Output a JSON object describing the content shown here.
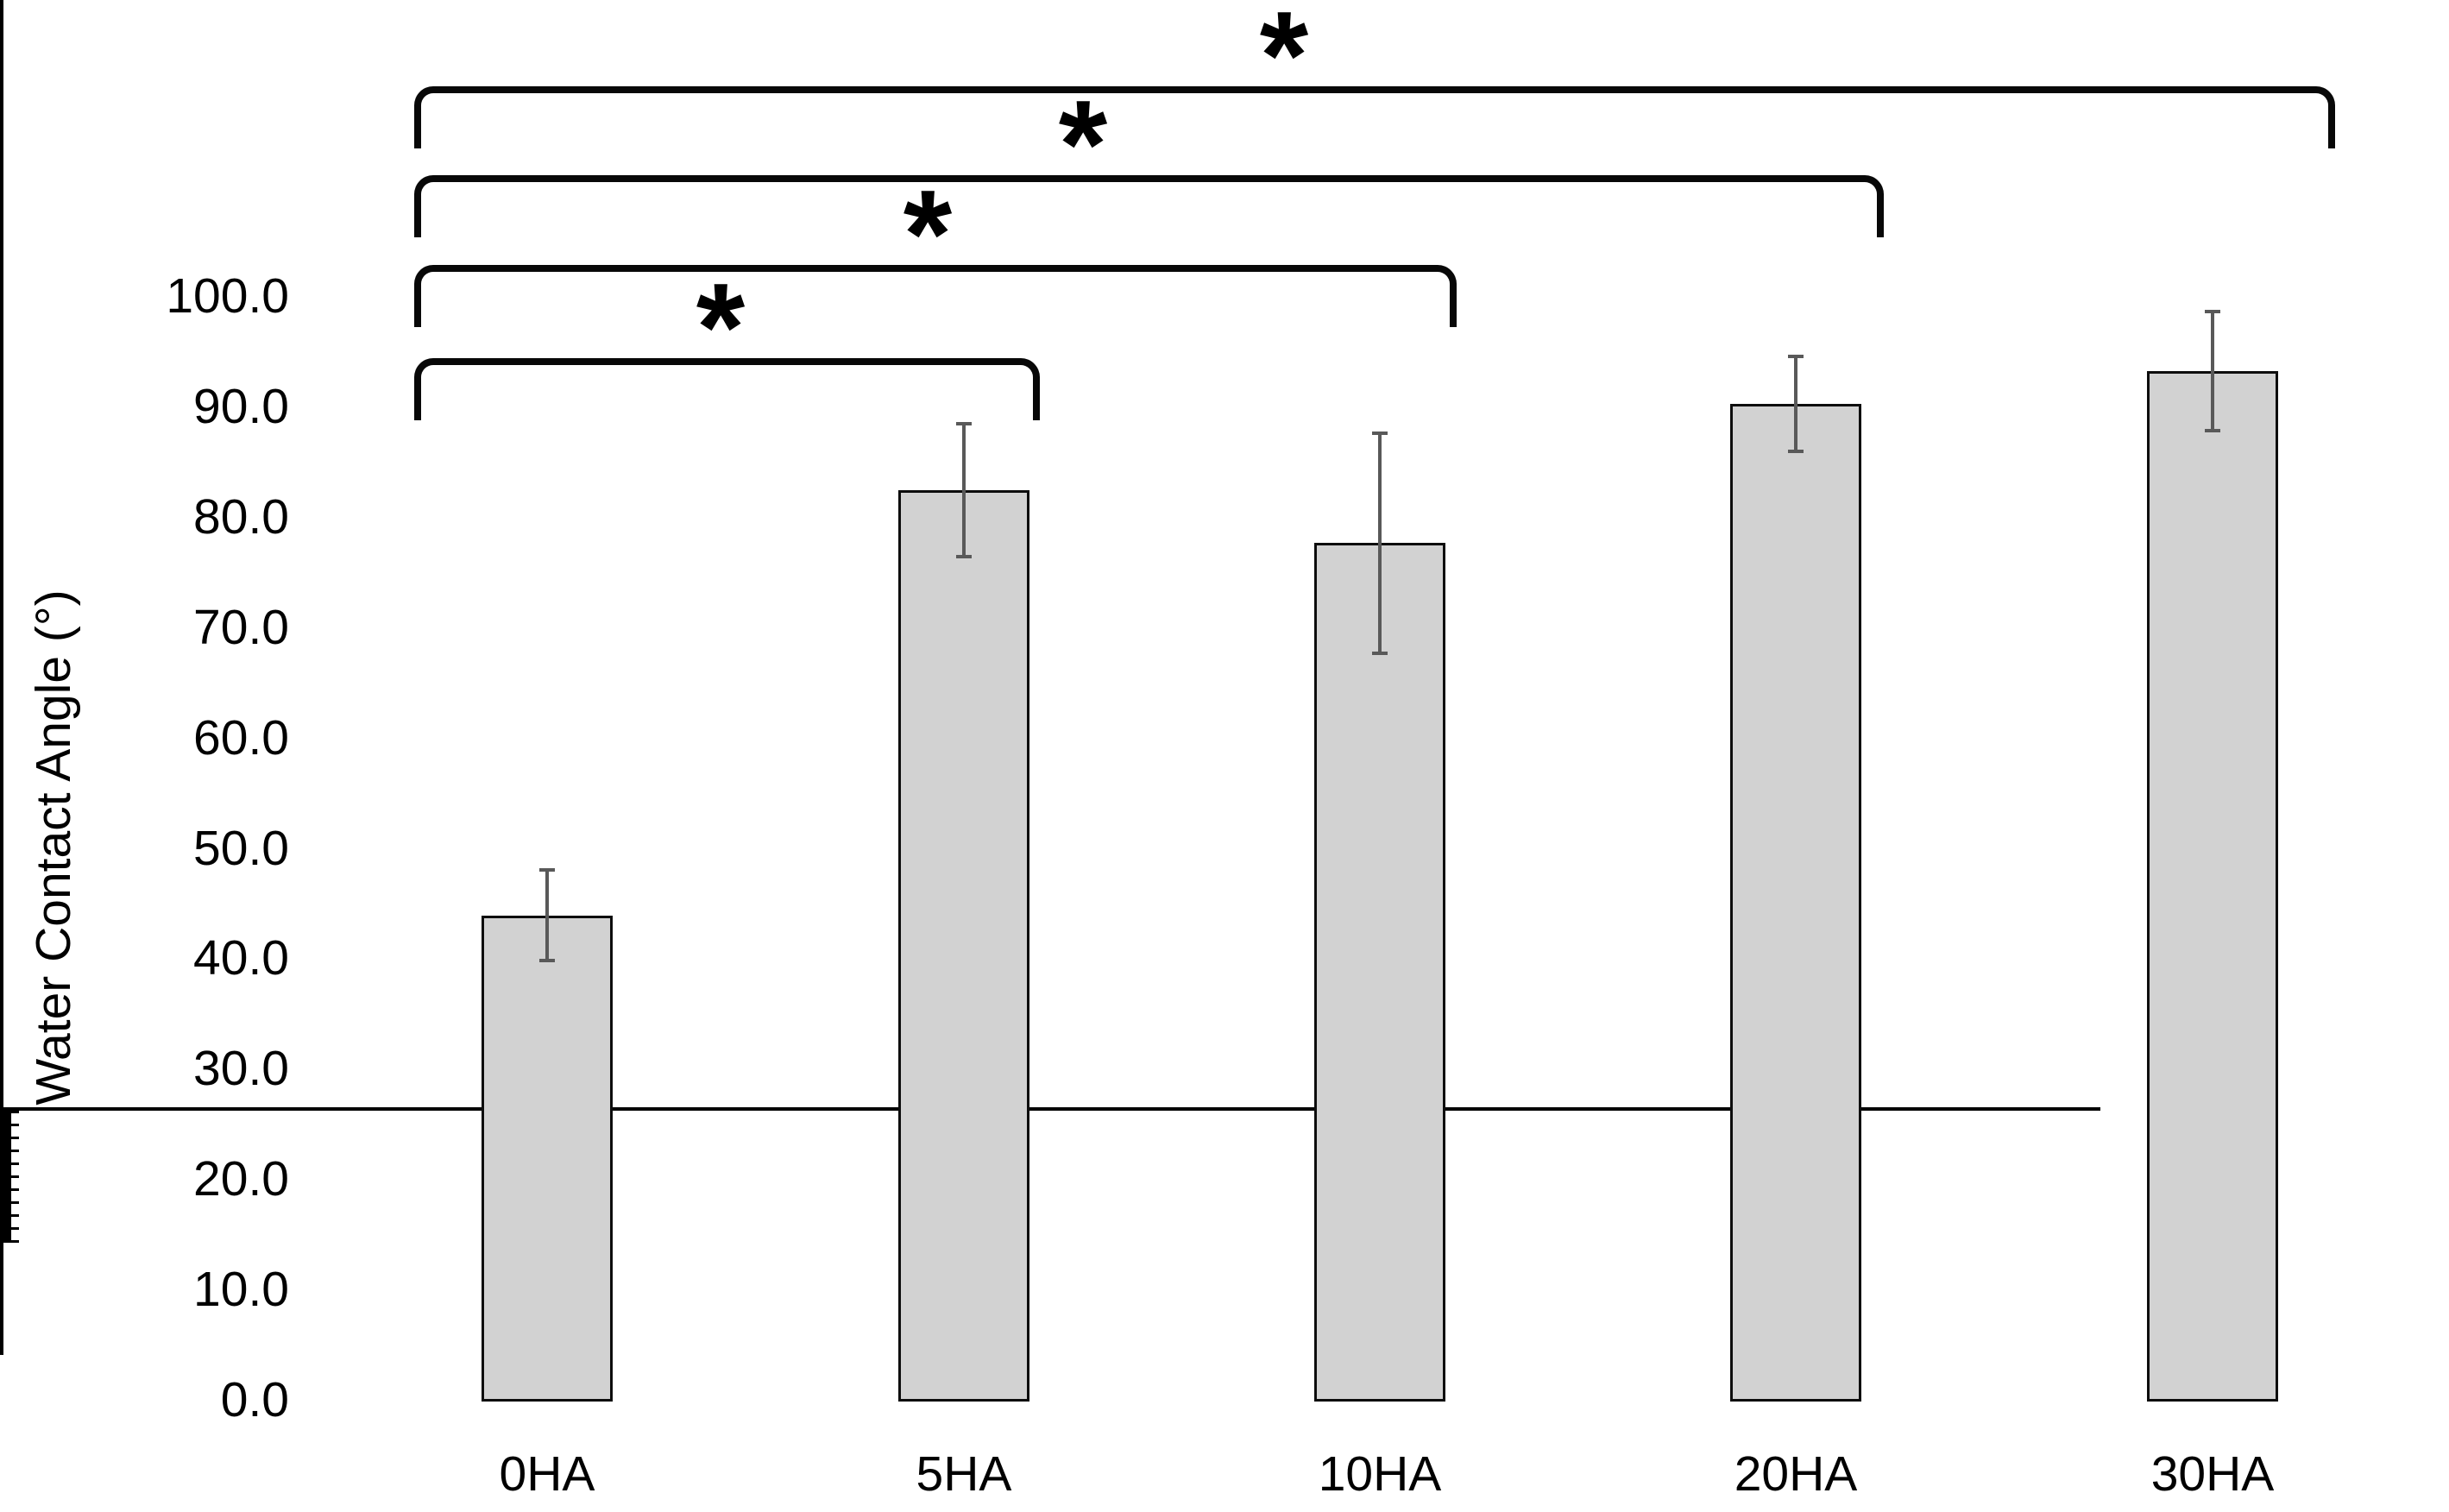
{
  "figure": {
    "background_color": "#ffffff",
    "text_color": "#000000"
  },
  "chart_data": {
    "type": "bar",
    "title": "",
    "xlabel": "",
    "ylabel": "Water Contact Angle (°)",
    "categories": [
      "0HA",
      "5HA",
      "10HA",
      "20HA",
      "30HA"
    ],
    "values": [
      43.9,
      82.4,
      77.6,
      90.2,
      93.2
    ],
    "error_bars_plus_minus": [
      4.1,
      6.0,
      10.0,
      4.3,
      5.4
    ],
    "ylim": [
      0,
      100
    ],
    "ytick_major_step": 10,
    "ytick_minor_step": 2,
    "ytick_labels": [
      "0.0",
      "10.0",
      "20.0",
      "30.0",
      "40.0",
      "50.0",
      "60.0",
      "70.0",
      "80.0",
      "90.0",
      "100.0"
    ],
    "grid": "off",
    "legend": "none",
    "bar_fill_color": "#d2d2d2",
    "bar_border_color": "#0d0d0d",
    "error_bar_color": "#595959",
    "significance_brackets": [
      {
        "from": "0HA",
        "to": "5HA",
        "label": "*"
      },
      {
        "from": "0HA",
        "to": "10HA",
        "label": "*"
      },
      {
        "from": "0HA",
        "to": "20HA",
        "label": "*"
      },
      {
        "from": "0HA",
        "to": "30HA",
        "label": "*"
      }
    ]
  }
}
